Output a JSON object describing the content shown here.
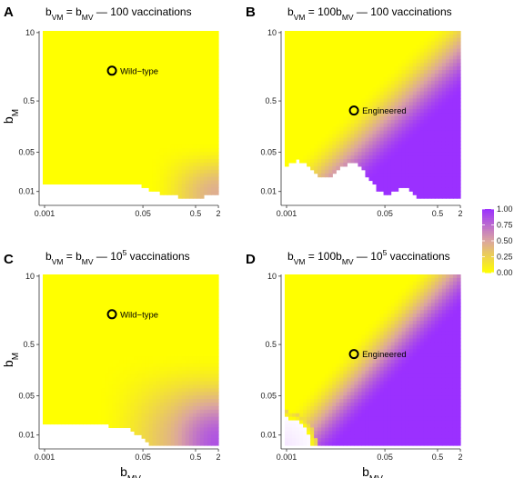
{
  "chart_data": {
    "type": "heatmap",
    "colorbar": {
      "ticks": [
        "1.00",
        "0.75",
        "0.50",
        "0.25",
        "0.00"
      ],
      "range": [
        0,
        1
      ],
      "colors": [
        "#ffff00",
        "#dba5a0",
        "#9b30ff"
      ]
    },
    "panels": [
      {
        "letter": "A",
        "title": {
          "parts": [
            {
              "t": "b"
            },
            {
              "t": "VM",
              "sub": true
            },
            {
              "t": " = b"
            },
            {
              "t": "MV",
              "sub": true
            },
            {
              "t": " — 100 vaccinations"
            }
          ]
        },
        "xlabel": "",
        "ylabel": "bM",
        "x_ticks": [
          "0.001",
          "0.05",
          "0.5",
          "2"
        ],
        "y_ticks": [
          "10",
          "0.5",
          "0.05",
          "0.01"
        ],
        "x_range": [
          0.001,
          2
        ],
        "y_range": [
          0.01,
          10
        ],
        "marker": {
          "label": "Wild−type",
          "b_MV": 0.02,
          "b_M": 2
        },
        "pattern": "A"
      },
      {
        "letter": "B",
        "title": {
          "parts": [
            {
              "t": "b"
            },
            {
              "t": "VM",
              "sub": true
            },
            {
              "t": " = 100b"
            },
            {
              "t": "MV",
              "sub": true
            },
            {
              "t": " — 100 vaccinations"
            }
          ]
        },
        "xlabel": "",
        "ylabel": "",
        "x_ticks": [
          "0.001",
          "0.05",
          "0.5",
          "2"
        ],
        "y_ticks": [
          "10",
          "0.5",
          "0.05",
          "0.01"
        ],
        "x_range": [
          0.001,
          2
        ],
        "y_range": [
          0.01,
          10
        ],
        "marker": {
          "label": "Engineered",
          "b_MV": 0.02,
          "b_M": 0.4
        },
        "pattern": "B"
      },
      {
        "letter": "C",
        "title": {
          "parts": [
            {
              "t": "b"
            },
            {
              "t": "VM",
              "sub": true
            },
            {
              "t": " = b"
            },
            {
              "t": "MV",
              "sub": true
            },
            {
              "t": " — 10"
            },
            {
              "t": "5",
              "sup": true
            },
            {
              "t": " vaccinations"
            }
          ]
        },
        "xlabel": "bMV",
        "ylabel": "bM",
        "x_ticks": [
          "0.001",
          "0.05",
          "0.5",
          "2"
        ],
        "y_ticks": [
          "10",
          "0.5",
          "0.05",
          "0.01"
        ],
        "x_range": [
          0.001,
          2
        ],
        "y_range": [
          0.01,
          10
        ],
        "marker": {
          "label": "Wild−type",
          "b_MV": 0.02,
          "b_M": 2
        },
        "pattern": "C"
      },
      {
        "letter": "D",
        "title": {
          "parts": [
            {
              "t": "b"
            },
            {
              "t": "VM",
              "sub": true
            },
            {
              "t": " = 100b"
            },
            {
              "t": "MV",
              "sub": true
            },
            {
              "t": " — 10"
            },
            {
              "t": "5",
              "sup": true
            },
            {
              "t": " vaccinations"
            }
          ]
        },
        "xlabel": "bMV",
        "ylabel": "",
        "x_ticks": [
          "0.001",
          "0.05",
          "0.5",
          "2"
        ],
        "y_ticks": [
          "10",
          "0.5",
          "0.05",
          "0.01"
        ],
        "x_range": [
          0.001,
          2
        ],
        "y_range": [
          0.01,
          10
        ],
        "marker": {
          "label": "Engineered",
          "b_MV": 0.02,
          "b_M": 0.4
        },
        "pattern": "D"
      }
    ]
  }
}
